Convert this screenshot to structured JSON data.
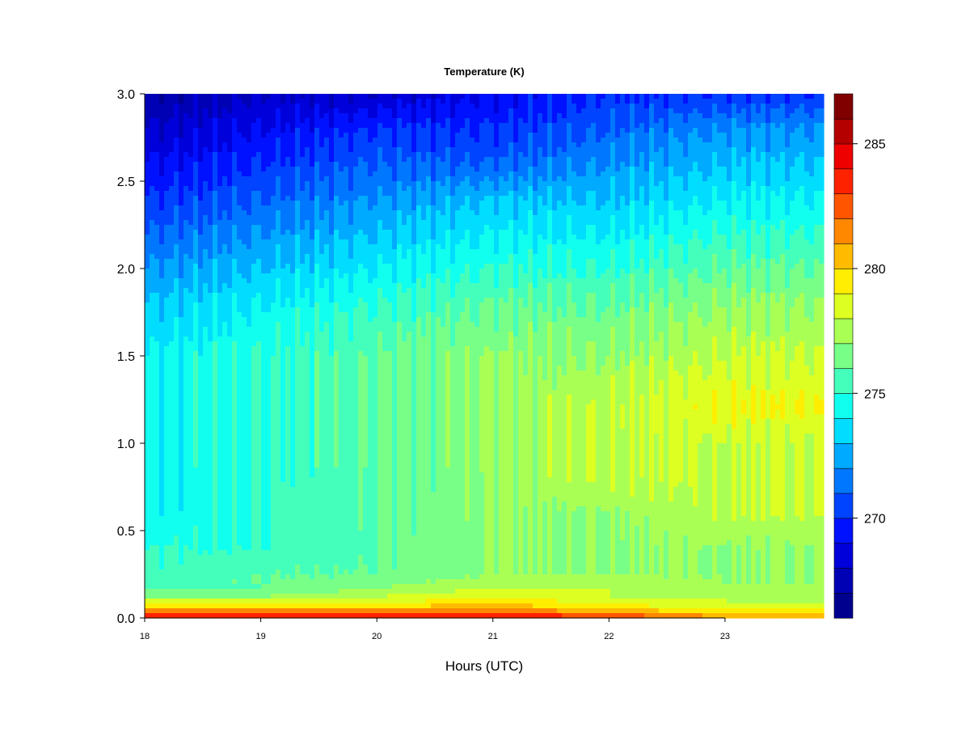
{
  "chart_data": {
    "type": "heatmap",
    "title": "Temperature (K)",
    "xlabel": "Hours (UTC)",
    "ylabel": "",
    "x_ticks": [
      "18",
      "19",
      "20",
      "21",
      "22",
      "23"
    ],
    "x_tick_values": [
      18,
      19,
      20,
      21,
      22,
      23
    ],
    "xlim": [
      18,
      23.85
    ],
    "y_ticks": [
      "0.0",
      "0.5",
      "1.0",
      "1.5",
      "2.0",
      "2.5",
      "3.0"
    ],
    "y_tick_values": [
      0,
      0.5,
      1.0,
      1.5,
      2.0,
      2.5,
      3.0
    ],
    "ylim": [
      0,
      3.0
    ],
    "colorbar": {
      "range": [
        266,
        286
      ],
      "ticks": [
        "270",
        "275",
        "280",
        "285"
      ],
      "tick_values": [
        270,
        275,
        280,
        285
      ],
      "levels": [
        {
          "lo": 266,
          "hi": 267,
          "color": "#00008f"
        },
        {
          "lo": 267,
          "hi": 268,
          "color": "#0000b5"
        },
        {
          "lo": 268,
          "hi": 269,
          "color": "#0000db"
        },
        {
          "lo": 269,
          "hi": 270,
          "color": "#0011ff"
        },
        {
          "lo": 270,
          "hi": 271,
          "color": "#0044ff"
        },
        {
          "lo": 271,
          "hi": 272,
          "color": "#0077ff"
        },
        {
          "lo": 272,
          "hi": 273,
          "color": "#00aaff"
        },
        {
          "lo": 273,
          "hi": 274,
          "color": "#00ddff"
        },
        {
          "lo": 274,
          "hi": 275,
          "color": "#11ffee"
        },
        {
          "lo": 275,
          "hi": 276,
          "color": "#44ffbb"
        },
        {
          "lo": 276,
          "hi": 277,
          "color": "#77ff88"
        },
        {
          "lo": 277,
          "hi": 278,
          "color": "#aaff55"
        },
        {
          "lo": 278,
          "hi": 279,
          "color": "#ddff22"
        },
        {
          "lo": 279,
          "hi": 280,
          "color": "#ffee00"
        },
        {
          "lo": 280,
          "hi": 281,
          "color": "#ffbb00"
        },
        {
          "lo": 281,
          "hi": 282,
          "color": "#ff8800"
        },
        {
          "lo": 282,
          "hi": 283,
          "color": "#ff5500"
        },
        {
          "lo": 283,
          "hi": 284,
          "color": "#ff2200"
        },
        {
          "lo": 284,
          "hi": 285,
          "color": "#ee0000"
        },
        {
          "lo": 285,
          "hi": 286,
          "color": "#b50000"
        },
        {
          "lo": 286,
          "hi": 287,
          "color": "#800000"
        }
      ]
    },
    "height_km": [
      0.0,
      0.02,
      0.05,
      0.08,
      0.12,
      0.17,
      0.25,
      0.4,
      0.6,
      0.8,
      1.0,
      1.2,
      1.5,
      1.8,
      2.0,
      2.2,
      2.4,
      2.6,
      2.8,
      3.0
    ],
    "profile_hours": [
      18,
      19,
      20,
      21,
      22,
      23,
      23.85
    ],
    "temperature_profiles": [
      [
        285,
        283,
        281,
        279,
        277,
        276,
        275,
        275,
        274,
        274,
        274,
        274,
        274,
        273,
        272,
        271,
        270,
        269,
        268,
        267
      ],
      [
        285,
        283,
        281,
        279,
        277,
        276,
        276,
        275,
        275,
        275,
        275,
        275,
        275,
        274,
        273,
        272,
        271,
        270,
        269,
        268
      ],
      [
        285,
        283,
        281,
        279,
        278,
        277,
        276,
        276,
        276,
        276,
        276,
        276,
        276,
        275,
        274,
        273,
        272,
        271,
        270,
        268
      ],
      [
        285,
        283,
        281,
        280,
        279,
        278,
        277,
        277,
        277,
        277,
        277,
        277,
        277,
        276,
        275,
        274,
        273,
        271,
        270,
        269
      ],
      [
        284,
        282,
        280,
        279,
        278,
        278,
        277,
        277,
        277,
        278,
        278,
        278,
        277,
        276,
        275,
        274,
        273,
        272,
        271,
        270
      ],
      [
        282,
        280,
        279,
        278,
        278,
        277,
        277,
        277,
        278,
        278,
        278,
        279,
        278,
        277,
        276,
        275,
        274,
        273,
        272,
        270
      ],
      [
        281,
        280,
        279,
        278,
        277,
        277,
        277,
        277,
        278,
        278,
        278,
        279,
        278,
        277,
        276,
        275,
        274,
        273,
        272,
        270
      ]
    ]
  }
}
